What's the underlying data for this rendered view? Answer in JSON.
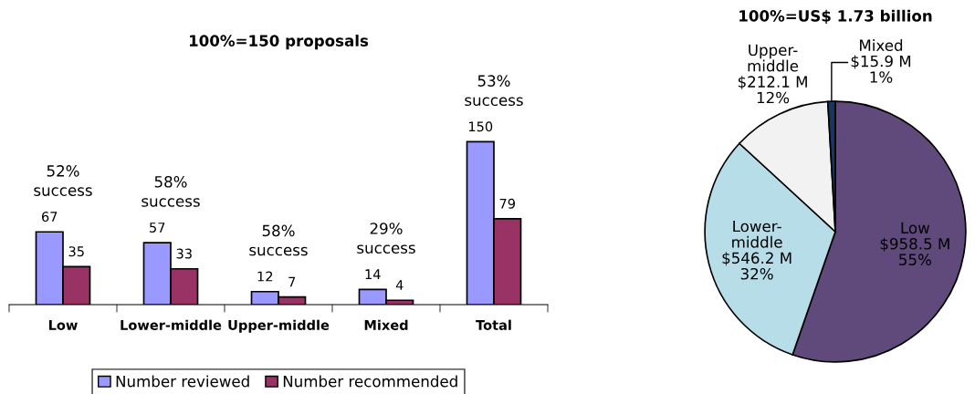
{
  "chart_data": [
    {
      "type": "bar",
      "title": "100%=150 proposals",
      "categories": [
        "Low",
        "Lower-middle",
        "Upper-middle",
        "Mixed",
        "Total"
      ],
      "series": [
        {
          "name": "Number reviewed",
          "color": "#9999ff",
          "values": [
            67,
            57,
            12,
            14,
            150
          ]
        },
        {
          "name": "Number recommended",
          "color": "#993366",
          "values": [
            35,
            33,
            7,
            4,
            79
          ]
        }
      ],
      "data_labels": true,
      "legend": "bottom",
      "grid": false,
      "annotations": [
        "52%\nsuccess",
        "58%\nsuccess",
        "58%\nsuccess",
        "29%\nsuccess",
        "53%\nsuccess"
      ]
    },
    {
      "type": "pie",
      "title": "100%=US$ 1.73 billion",
      "categories": [
        "Low",
        "Lower-middle",
        "Upper-middle",
        "Mixed"
      ],
      "values": [
        958.5,
        546.2,
        212.1,
        15.9
      ],
      "value_labels": [
        "$958.5 M\n55%",
        "$546.2 M\n32%",
        "$212.1 M\n12%",
        "$15.9 M\n1%"
      ],
      "colors": [
        "#604a7b",
        "#b7dde8",
        "#f2f2f2",
        "#17375e"
      ]
    }
  ]
}
